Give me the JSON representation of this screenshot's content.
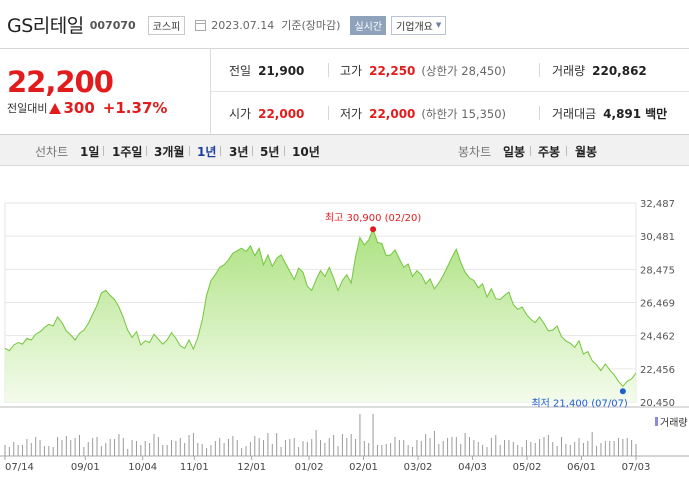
{
  "stock": {
    "name": "GS리테일",
    "code": "007070",
    "market": "코스피",
    "date_label": "2023.07.14  기준(장마감)",
    "realtime_label": "실시간",
    "overview_label": "기업개요"
  },
  "price": {
    "current": "22,200",
    "change_label": "전일대비",
    "change": "300",
    "change_pct": "+1.37%"
  },
  "stats": {
    "prev_label": "전일",
    "prev_value": "21,900",
    "high_label": "고가",
    "high_value": "22,250",
    "upper_limit": "(상한가 28,450)",
    "volume_label": "거래량",
    "volume_value": "220,862",
    "open_label": "시가",
    "open_value": "22,000",
    "low_label": "저가",
    "low_value": "22,000",
    "lower_limit": "(하한가 15,350)",
    "amount_label": "거래대금",
    "amount_value": "4,891",
    "amount_unit": "백만"
  },
  "toolbar": {
    "line_label": "선차트",
    "ranges": [
      "1일",
      "1주일",
      "3개월",
      "1년",
      "3년",
      "5년",
      "10년"
    ],
    "selected_range": "1년",
    "candle_label": "봉차트",
    "candles": [
      "일봉",
      "주봉",
      "월봉"
    ]
  },
  "colors": {
    "up": "#e21c1c",
    "selected": "#1a3f9e",
    "line": "#7ac943",
    "fill": "#b8e986"
  },
  "chart_data": {
    "type": "area",
    "y_ticks": [
      "32,487",
      "30,481",
      "28,475",
      "26,469",
      "24,462",
      "22,456",
      "20,450"
    ],
    "ylim": [
      20450,
      32487
    ],
    "x_ticks": [
      "07/14",
      "09/01",
      "10/04",
      "11/01",
      "12/01",
      "01/02",
      "02/01",
      "03/02",
      "04/03",
      "05/02",
      "06/01",
      "07/03"
    ],
    "volume_label": "거래량",
    "high_annotation": "최고 30,900 (02/20)",
    "low_annotation": "최저 21,400 (07/07)",
    "high_point": {
      "x": "02/20",
      "y": 30900
    },
    "low_point": {
      "x": "07/07",
      "y": 21400
    },
    "series": [
      {
        "values": [
          23700,
          23550,
          23900,
          24050,
          23950,
          24300,
          24200,
          24550,
          24700,
          24950,
          25150,
          25050,
          25600,
          25250,
          24750,
          24500,
          24200,
          24600,
          24800,
          25200,
          25750,
          26300,
          27050,
          27200,
          26900,
          26650,
          26200,
          25550,
          24800,
          24350,
          24700,
          23900,
          24150,
          24050,
          24550,
          24250,
          23950,
          24200,
          24650,
          24300,
          23850,
          23700,
          24200,
          23650,
          24350,
          25400,
          26900,
          27800,
          28150,
          28600,
          28750,
          29050,
          29450,
          29600,
          29750,
          29550,
          29900,
          29300,
          29750,
          28750,
          29350,
          28650,
          29150,
          29350,
          28850,
          28350,
          27850,
          28550,
          28300,
          27450,
          27200,
          27850,
          28400,
          28050,
          28600,
          27950,
          27200,
          27800,
          28150,
          27650,
          29250,
          30400,
          29950,
          30250,
          30900,
          30100,
          30050,
          29300,
          29350,
          29650,
          29100,
          28600,
          28800,
          28050,
          28400,
          28150,
          27600,
          27900,
          27300,
          27650,
          28100,
          28650,
          29200,
          29700,
          28900,
          28300,
          27950,
          27800,
          27350,
          27600,
          26800,
          27300,
          26700,
          26650,
          26900,
          27100,
          26350,
          26050,
          26200,
          25750,
          25450,
          25250,
          25600,
          25200,
          24750,
          24800,
          25050,
          24400,
          24150,
          24000,
          23750,
          24150,
          23350,
          23500,
          22950,
          22700,
          22350,
          22750,
          22400,
          22100,
          21700,
          21400,
          21700,
          21850,
          22200
        ]
      }
    ]
  }
}
